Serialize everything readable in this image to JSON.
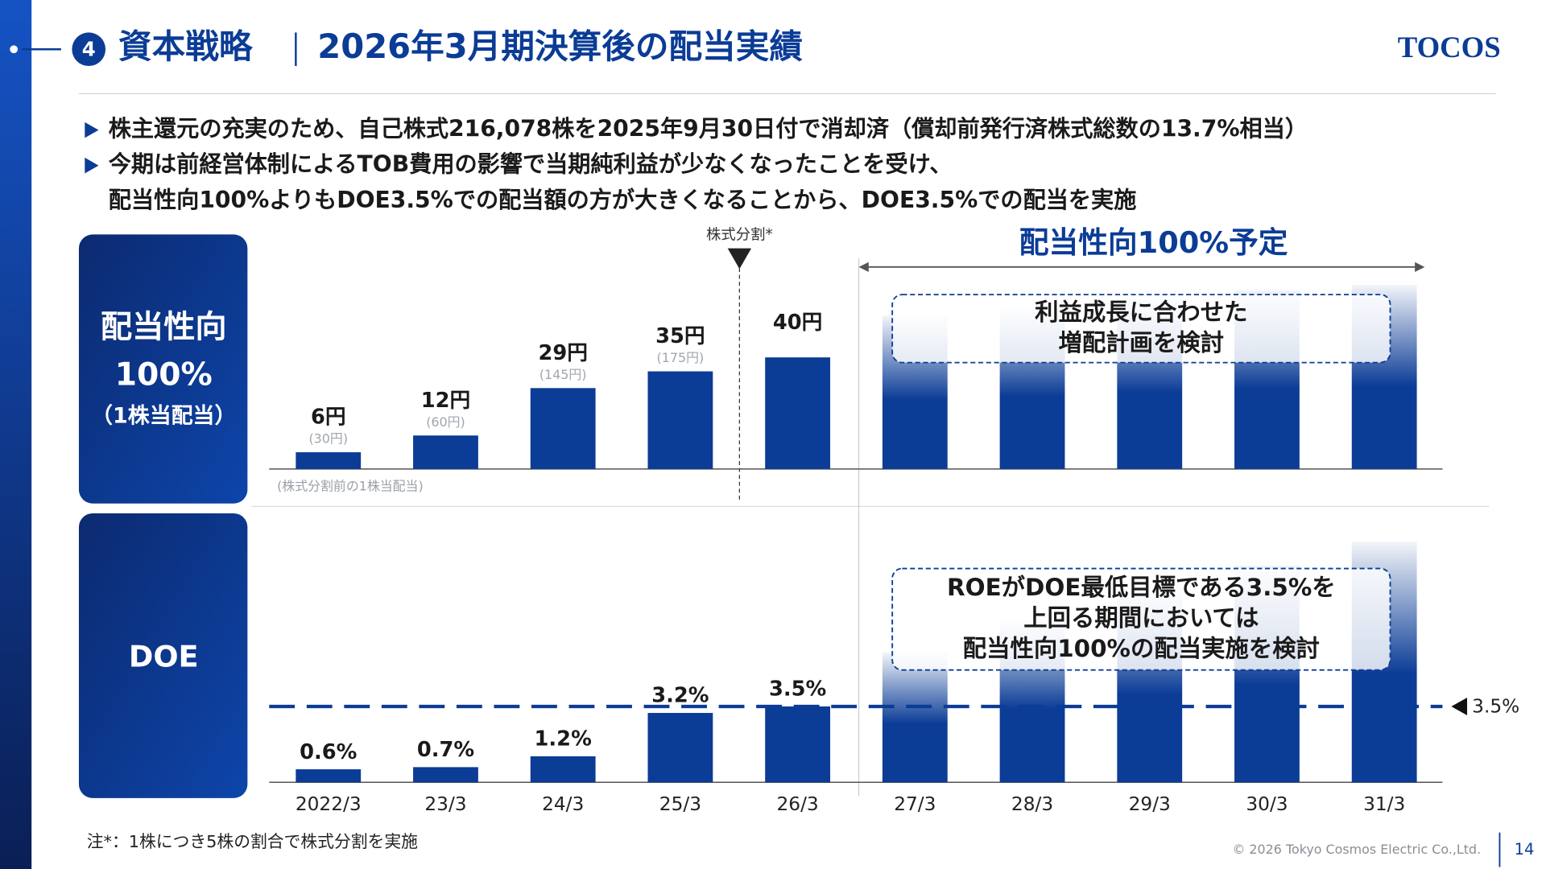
{
  "header": {
    "section_number": "4",
    "section": "資本戦略",
    "title": "2026年3月期決算後の配当実績",
    "logo": "TOCOS"
  },
  "bullets": [
    {
      "lines": [
        "株主還元の充実のため、自己株式216,078株を2025年9月30日付で消却済（償却前発行済株式総数の13.7%相当）"
      ]
    },
    {
      "lines": [
        "今期は前経営体制によるTOB費用の影響で当期純利益が少なくなったことを受け、",
        "配当性向100%よりもDOE3.5%での配当額の方が大きくなることから、DOE3.5%での配当を実施"
      ]
    }
  ],
  "chart_data": [
    {
      "type": "bar",
      "panel_label": [
        "配当性向",
        "100%",
        "（1株当配当）"
      ],
      "values": [
        6,
        12,
        29,
        35,
        40,
        55,
        58,
        61,
        64,
        66
      ],
      "value_labels": [
        "6円",
        "12円",
        "29円",
        "35円",
        "40円",
        null,
        null,
        null,
        null,
        null
      ],
      "pre_split_labels": [
        "(30円)",
        "(60円)",
        "(145円)",
        "(175円)",
        null,
        null,
        null,
        null,
        null,
        null
      ],
      "pre_split_note": "(株式分割前の1株当配当)",
      "split_marker": "株式分割*",
      "annotation": [
        "利益成長に合わせた",
        "増配計画を検討"
      ],
      "ylim": [
        0,
        83
      ],
      "color": "#0b3c96"
    },
    {
      "type": "bar",
      "panel_label": [
        "DOE"
      ],
      "categories": [
        "2022/3",
        "23/3",
        "24/3",
        "25/3",
        "26/3",
        "27/3",
        "28/3",
        "29/3",
        "30/3",
        "31/3"
      ],
      "values": [
        0.6,
        0.7,
        1.2,
        3.2,
        3.5,
        6,
        7.5,
        9,
        10,
        11.1
      ],
      "value_labels": [
        "0.6%",
        "0.7%",
        "1.2%",
        "3.2%",
        "3.5%",
        null,
        null,
        null,
        null,
        null
      ],
      "reference_line": {
        "value": 3.5,
        "label": "3.5%"
      },
      "annotation": [
        "ROEがDOE最低目標である3.5%を",
        "上回る期間においては",
        "配当性向100%の配当実施を検討"
      ],
      "ylim": [
        0,
        11.5
      ],
      "color": "#0b3c96"
    }
  ],
  "projection_label": "配当性向100%予定",
  "footnote": "注*：1株につき5株の割合で株式分割を実施",
  "copyright": "© 2026 Tokyo Cosmos Electric Co.,Ltd.",
  "page_number": "14"
}
